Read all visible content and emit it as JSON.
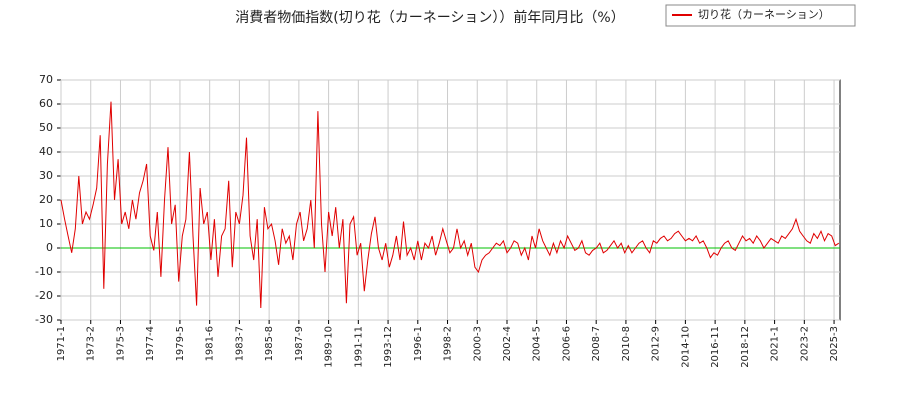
{
  "chart_data": {
    "type": "line",
    "title": "消費者物価指数(切り花（カーネーション））前年同月比（%）",
    "x": [
      "1971-1",
      "1971-4",
      "1971-7",
      "1971-10",
      "1972-1",
      "1972-4",
      "1972-7",
      "1972-10",
      "1973-1",
      "1973-4",
      "1973-7",
      "1973-10",
      "1974-1",
      "1974-4",
      "1974-7",
      "1974-10",
      "1975-1",
      "1975-4",
      "1975-7",
      "1975-10",
      "1976-1",
      "1976-4",
      "1976-7",
      "1976-10",
      "1977-1",
      "1977-4",
      "1977-7",
      "1977-10",
      "1978-1",
      "1978-4",
      "1978-7",
      "1978-10",
      "1979-1",
      "1979-4",
      "1979-7",
      "1979-10",
      "1980-1",
      "1980-4",
      "1980-7",
      "1980-10",
      "1981-1",
      "1981-4",
      "1981-7",
      "1981-10",
      "1982-1",
      "1982-4",
      "1982-7",
      "1982-10",
      "1983-1",
      "1983-4",
      "1983-7",
      "1983-10",
      "1984-1",
      "1984-4",
      "1984-7",
      "1984-10",
      "1985-1",
      "1985-4",
      "1985-7",
      "1985-10",
      "1986-1",
      "1986-4",
      "1986-7",
      "1986-10",
      "1987-1",
      "1987-4",
      "1987-7",
      "1987-10",
      "1988-1",
      "1988-4",
      "1988-7",
      "1988-10",
      "1989-1",
      "1989-4",
      "1989-7",
      "1989-10",
      "1990-1",
      "1990-4",
      "1990-7",
      "1990-10",
      "1991-1",
      "1991-4",
      "1991-7",
      "1991-10",
      "1992-1",
      "1992-4",
      "1992-7",
      "1992-10",
      "1993-1",
      "1993-4",
      "1993-7",
      "1993-10",
      "1994-1",
      "1994-4",
      "1994-7",
      "1994-10",
      "1995-1",
      "1995-4",
      "1995-7",
      "1995-10",
      "1996-1",
      "1996-4",
      "1996-7",
      "1996-10",
      "1997-1",
      "1997-4",
      "1997-7",
      "1997-10",
      "1998-1",
      "1998-4",
      "1998-7",
      "1998-10",
      "1999-1",
      "1999-4",
      "1999-7",
      "1999-10",
      "2000-1",
      "2000-4",
      "2000-7",
      "2000-10",
      "2001-1",
      "2001-4",
      "2001-7",
      "2001-10",
      "2002-1",
      "2002-4",
      "2002-7",
      "2002-10",
      "2003-1",
      "2003-4",
      "2003-7",
      "2003-10",
      "2004-1",
      "2004-4",
      "2004-7",
      "2004-10",
      "2005-1",
      "2005-4",
      "2005-7",
      "2005-10",
      "2006-1",
      "2006-4",
      "2006-7",
      "2006-10",
      "2007-1",
      "2007-4",
      "2007-7",
      "2007-10",
      "2008-1",
      "2008-4",
      "2008-7",
      "2008-10",
      "2009-1",
      "2009-4",
      "2009-7",
      "2009-10",
      "2010-1",
      "2010-4",
      "2010-7",
      "2010-10",
      "2011-1",
      "2011-4",
      "2011-7",
      "2011-10",
      "2012-1",
      "2012-4",
      "2012-7",
      "2012-10",
      "2013-1",
      "2013-4",
      "2013-7",
      "2013-10",
      "2014-1",
      "2014-4",
      "2014-7",
      "2014-10",
      "2015-1",
      "2015-4",
      "2015-7",
      "2015-10",
      "2016-1",
      "2016-4",
      "2016-7",
      "2016-10",
      "2017-1",
      "2017-4",
      "2017-7",
      "2017-10",
      "2018-1",
      "2018-4",
      "2018-7",
      "2018-10",
      "2019-1",
      "2019-4",
      "2019-7",
      "2019-10",
      "2020-1",
      "2020-4",
      "2020-7",
      "2020-10",
      "2021-1",
      "2021-4",
      "2021-7",
      "2021-10",
      "2022-1",
      "2022-4",
      "2022-7",
      "2022-10",
      "2023-1",
      "2023-4",
      "2023-7",
      "2023-10",
      "2024-1",
      "2024-4",
      "2024-7",
      "2024-10",
      "2025-1",
      "2025-4",
      "2025-7"
    ],
    "series": [
      {
        "name": "切り花（カーネーション）",
        "color": "#e00000",
        "values": [
          20,
          12,
          5,
          -2,
          8,
          30,
          10,
          15,
          12,
          18,
          25,
          47,
          -17,
          35,
          61,
          20,
          37,
          10,
          15,
          8,
          20,
          12,
          23,
          28,
          35,
          5,
          -1,
          15,
          -12,
          20,
          42,
          10,
          18,
          -14,
          5,
          12,
          40,
          5,
          -24,
          25,
          10,
          15,
          -5,
          12,
          -12,
          5,
          8,
          28,
          -8,
          15,
          10,
          22,
          46,
          5,
          -5,
          12,
          -25,
          17,
          8,
          10,
          3,
          -7,
          8,
          2,
          5,
          -5,
          10,
          15,
          3,
          8,
          20,
          0,
          57,
          10,
          -10,
          15,
          5,
          17,
          0,
          12,
          -23,
          10,
          13,
          -3,
          2,
          -18,
          -5,
          6,
          13,
          0,
          -5,
          2,
          -8,
          -3,
          5,
          -5,
          11,
          -3,
          0,
          -5,
          3,
          -5,
          2,
          0,
          5,
          -3,
          2,
          8,
          3,
          -2,
          0,
          8,
          0,
          3,
          -3,
          2,
          -8,
          -10,
          -5,
          -3,
          -2,
          0,
          2,
          1,
          3,
          -2,
          0,
          3,
          2,
          -3,
          0,
          -5,
          5,
          0,
          8,
          3,
          0,
          -3,
          2,
          -2,
          3,
          0,
          5,
          2,
          -1,
          0,
          3,
          -2,
          -3,
          -1,
          0,
          2,
          -2,
          -1,
          1,
          3,
          0,
          2,
          -2,
          1,
          -2,
          0,
          2,
          3,
          0,
          -2,
          3,
          2,
          4,
          5,
          3,
          4,
          6,
          7,
          5,
          3,
          4,
          3,
          5,
          2,
          3,
          0,
          -4,
          -2,
          -3,
          0,
          2,
          3,
          0,
          -1,
          2,
          5,
          3,
          4,
          2,
          5,
          3,
          0,
          2,
          4,
          3,
          2,
          5,
          4,
          6,
          8,
          12,
          7,
          5,
          3,
          2,
          6,
          4,
          7,
          3,
          6,
          5,
          1,
          2
        ]
      }
    ],
    "xlim": [
      "1971-1",
      "2025-8"
    ],
    "xticks": [
      "1971-1",
      "1973-2",
      "1975-3",
      "1977-4",
      "1979-5",
      "1981-6",
      "1983-7",
      "1985-8",
      "1987-9",
      "1989-10",
      "1991-11",
      "1993-12",
      "1996-1",
      "1998-2",
      "2000-3",
      "2002-4",
      "2004-5",
      "2006-6",
      "2008-7",
      "2010-8",
      "2012-9",
      "2014-10",
      "2016-11",
      "2018-12",
      "2021-1",
      "2023-2",
      "2025-3"
    ],
    "ylim": [
      -30,
      70
    ],
    "yticks": [
      -30,
      -20,
      -10,
      0,
      10,
      20,
      30,
      40,
      50,
      60,
      70
    ],
    "grid": true,
    "hline": 0,
    "hline_color": "#00c000",
    "legend": "upper right"
  }
}
